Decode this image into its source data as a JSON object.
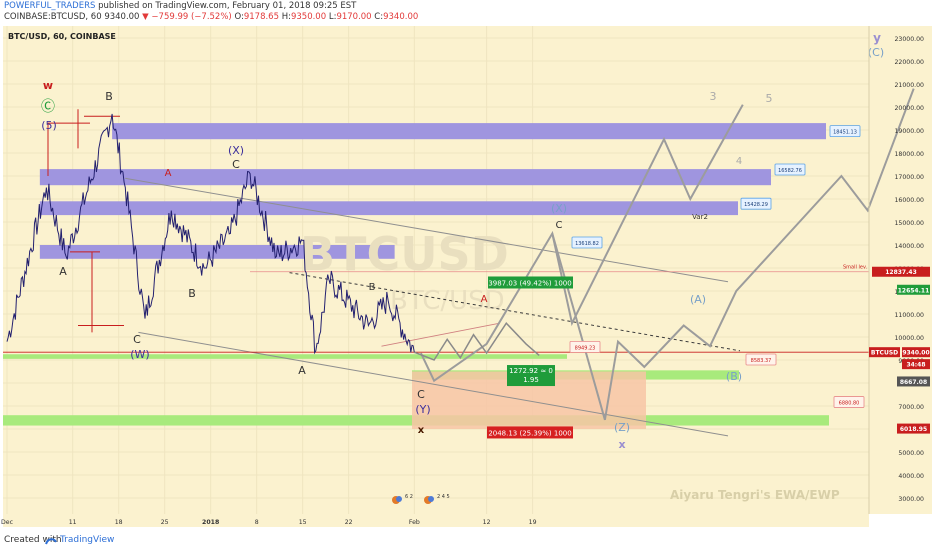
{
  "header": {
    "publisher": "POWERFUL_TRADERS",
    "published_text": "published on TradingView.com, February 01, 2018 09:25 EST",
    "symbol_line": "COINBASE:BTCUSD, 60",
    "last": "9340.00",
    "change": "▼ −759.99 (−7.52%)",
    "o_label": "O:",
    "o_val": "9178.65",
    "h_label": "H:",
    "h_val": "9350.00",
    "l_label": "L:",
    "l_val": "9170.00",
    "c_label": "C:",
    "c_val": "9340.00"
  },
  "chart_title": "BTC/USD, 60, COINBASE",
  "watermark": {
    "main": "BTCUSD",
    "sub": "BTC/USD",
    "author": "Aiyaru Tengri's EWA/EWP"
  },
  "footer": {
    "created_with": "Created with",
    "brand": "TradingView"
  },
  "colors": {
    "background": "#fbf2cf",
    "resistance_band": "#9f95df",
    "support_band": "#a8ea7c",
    "price_line": "#23206f",
    "projection": "#9c9c9c",
    "red": "#c81e1e",
    "wave_blue": "#3c2f9c",
    "wave_teal": "#78a0c8"
  },
  "chart_data": {
    "type": "line",
    "title": "BTC/USD, 60, COINBASE",
    "y_axis_ticks": [
      23000,
      22000,
      21000,
      20000,
      19000,
      18000,
      17000,
      16000,
      15000,
      14000,
      13000,
      12000,
      11000,
      10000,
      9000,
      8000,
      7000,
      6000,
      5000,
      4000,
      3000
    ],
    "x_axis_ticks": [
      "Dec",
      "11",
      "18",
      "25",
      "2018",
      "8",
      "15",
      "22",
      "Feb",
      "12",
      "19"
    ],
    "ylim": [
      2500,
      23500
    ],
    "price_path": [
      {
        "x": "Dec 1",
        "y": 9800
      },
      {
        "x": "Dec 7",
        "y": 16500
      },
      {
        "x": "Dec 10",
        "y": 13500
      },
      {
        "x": "Dec 17",
        "y": 19700
      },
      {
        "x": "Dec 19",
        "y": 16500
      },
      {
        "x": "Dec 22",
        "y": 10800
      },
      {
        "x": "Dec 26",
        "y": 15500
      },
      {
        "x": "Dec 31",
        "y": 13000
      },
      {
        "x": "Jan 4",
        "y": 14500
      },
      {
        "x": "Jan 7",
        "y": 17100
      },
      {
        "x": "Jan 11",
        "y": 13500
      },
      {
        "x": "Jan 15",
        "y": 14200
      },
      {
        "x": "Jan 17",
        "y": 9400
      },
      {
        "x": "Jan 19",
        "y": 12500
      },
      {
        "x": "Jan 25",
        "y": 10500
      },
      {
        "x": "Jan 28",
        "y": 11600
      },
      {
        "x": "Feb 1",
        "y": 9340
      }
    ],
    "projections": [
      {
        "name": "Var2",
        "points": [
          {
            "x": "Feb 2",
            "y": 9300
          },
          {
            "x": "Feb 4",
            "y": 8100
          },
          {
            "x": "Feb 12",
            "y": 9700
          },
          {
            "x": "Feb 22",
            "y": 14500
          },
          {
            "x": "Feb 25",
            "y": 10600
          },
          {
            "x": "Mar 11",
            "y": 18600
          },
          {
            "x": "Mar 15",
            "y": 16000
          },
          {
            "x": "Mar 23",
            "y": 20100
          }
        ]
      },
      {
        "name": "",
        "points": [
          {
            "x": "Feb 22",
            "y": 14500
          },
          {
            "x": "Mar 2",
            "y": 6400
          },
          {
            "x": "Mar 4",
            "y": 9800
          },
          {
            "x": "Mar 8",
            "y": 8700
          },
          {
            "x": "Mar 14",
            "y": 10500
          },
          {
            "x": "Mar 18",
            "y": 9600
          },
          {
            "x": "Mar 22",
            "y": 12000
          },
          {
            "x": "Apr 7",
            "y": 17000
          },
          {
            "x": "Apr 11",
            "y": 15500
          },
          {
            "x": "Apr 18",
            "y": 20800
          }
        ]
      }
    ],
    "resistance_zones": [
      [
        18600,
        19300
      ],
      [
        16600,
        17300
      ],
      [
        15300,
        15900
      ],
      [
        13400,
        14000
      ]
    ],
    "support_zones": [
      [
        9050,
        9250
      ],
      [
        8150,
        8550
      ],
      [
        6150,
        6600
      ]
    ],
    "callouts": [
      "18451.13",
      "16582.76",
      "15428.29",
      "13618.82",
      "8949.23",
      "8583.37",
      "6880.80"
    ],
    "measure_labels": [
      "3987.03 (49.42%) 1000",
      "1272.92 ≈ 0",
      "1.95",
      "2048.13 (25.39%) 1000"
    ],
    "wave_labels": [
      "w",
      "Ⓒ",
      "(5)",
      "B",
      "A",
      "C",
      "(W)",
      "(X)",
      "C",
      "A",
      "B",
      "A",
      "B",
      "A",
      "C",
      "(Y)",
      "x",
      "(X)",
      "C",
      "Var2",
      "3",
      "4",
      "5",
      "(A)",
      "(B)",
      "(Z)",
      "x",
      "y",
      "(C)"
    ],
    "level_text": "Small lev.",
    "price_labels": [
      {
        "text": "12837.43",
        "bg": "#c81e1e"
      },
      {
        "text": "12654.11",
        "bg": "#1f9c3a"
      },
      {
        "text": "BTCUSD",
        "bg": "#c81e1e"
      },
      {
        "text": "9340.00",
        "bg": "#c81e1e"
      },
      {
        "text": "34:48",
        "bg": "#c81e1e"
      },
      {
        "text": "8667.08",
        "bg": "#555555"
      },
      {
        "text": "6018.95",
        "bg": "#c81e1e"
      }
    ],
    "event_icons": [
      {
        "digits": "6 2"
      },
      {
        "digits": "2 4 5"
      }
    ]
  }
}
